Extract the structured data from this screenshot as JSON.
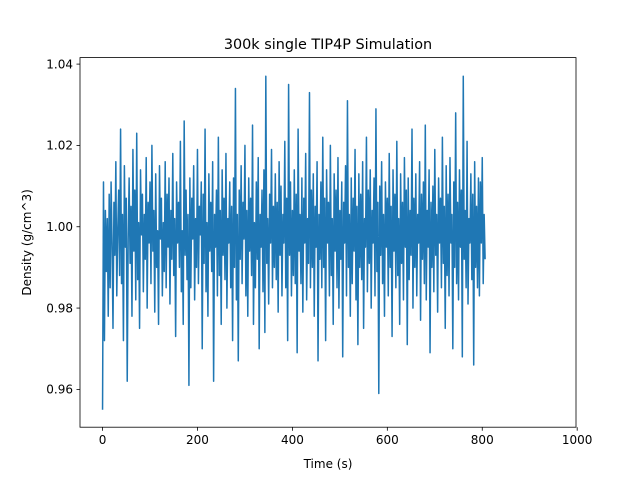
{
  "chart_data": {
    "type": "line",
    "title": "300k single TIP4P Simulation",
    "xlabel": "Time (s)",
    "ylabel": "Density (g/cm^3)",
    "xlim": [
      -47.5,
      997.5
    ],
    "ylim": [
      0.9507,
      1.0416
    ],
    "xticks": [
      0,
      200,
      400,
      600,
      800,
      1000
    ],
    "xtick_labels": [
      "0",
      "200",
      "400",
      "600",
      "800",
      "1000"
    ],
    "yticks": [
      0.96,
      0.98,
      1.0,
      1.02,
      1.04
    ],
    "ytick_labels": [
      "0.96",
      "0.98",
      "1.00",
      "1.02",
      "1.04"
    ],
    "grid": false,
    "series": [
      {
        "color": "#1f77b4",
        "x_start": 0,
        "x_step": 2,
        "values": [
          0.955,
          1.011,
          0.972,
          1.004,
          0.989,
          1.002,
          0.978,
          1.008,
          0.985,
          1.011,
          0.996,
          0.975,
          1.006,
          0.993,
          1.016,
          0.983,
          0.999,
          1.009,
          0.988,
          1.024,
          0.986,
          1.003,
          0.972,
          1.015,
          0.995,
          1.007,
          0.962,
          0.997,
          1.012,
          0.991,
          1.005,
          0.978,
          1.019,
          0.994,
          1.009,
          0.982,
          1.023,
          0.987,
          1.001,
          0.975,
          1.014,
          0.998,
          1.008,
          0.984,
          1.003,
          0.992,
          1.017,
          0.98,
          1.006,
          0.996,
          1.011,
          0.986,
          1.02,
          0.994,
          1.004,
          0.979,
          1.013,
          0.99,
          0.999,
          0.976,
          1.015,
          0.997,
          1.007,
          0.983,
          1.001,
          0.989,
          1.016,
          0.985,
          1.008,
          0.995,
          1.012,
          0.981,
          1.004,
          0.992,
          1.018,
          0.988,
          1.002,
          0.973,
          1.011,
          0.996,
          1.006,
          0.99,
          1.021,
          0.984,
          0.999,
          0.976,
          1.026,
          0.993,
          1.009,
          0.987,
          1.003,
          0.961,
          1.012,
          0.985,
          1.007,
          0.997,
          1.015,
          0.982,
          1.002,
          0.99,
          1.019,
          0.986,
          1.005,
          0.998,
          1.011,
          0.97,
          1.008,
          0.991,
          1.024,
          0.984,
          1.001,
          0.978,
          1.013,
          0.994,
          1.006,
          0.989,
          1.016,
          0.962,
          1.003,
          0.995,
          1.009,
          0.983,
          1.022,
          0.988,
          1.004,
          0.976,
          1.014,
          0.993,
          1.007,
          0.987,
          1.018,
          0.98,
          1.002,
          0.996,
          1.011,
          0.985,
          1.005,
          0.972,
          1.012,
          0.99,
          1.034,
          0.982,
          1.003,
          0.967,
          1.009,
          0.992,
          1.015,
          0.986,
          1.006,
          0.997,
          1.02,
          0.983,
          1.004,
          0.978,
          1.012,
          0.994,
          1.007,
          0.988,
          1.025,
          0.976,
          1.001,
          0.985,
          1.011,
          0.992,
          1.017,
          0.97,
          1.003,
          0.995,
          1.009,
          0.984,
          1.014,
          0.974,
          1.037,
          0.991,
          1.002,
          0.981,
          1.008,
          0.996,
          1.019,
          0.985,
          1.005,
          0.99,
          1.013,
          0.987,
          1.006,
          0.979,
          1.016,
          0.993,
          1.01,
          0.983,
          1.003,
          0.996,
          1.021,
          0.985,
          1.007,
          0.972,
          1.035,
          0.993,
          1.011,
          0.983,
          1.004,
          0.988,
          1.014,
          0.986,
          1.008,
          0.969,
          1.024,
          0.994,
          1.003,
          0.986,
          1.012,
          0.979,
          1.007,
          0.996,
          1.018,
          0.982,
          1.002,
          0.991,
          1.033,
          0.985,
          1.009,
          0.99,
          1.013,
          0.978,
          1.005,
          0.995,
          1.016,
          0.967,
          1.003,
          0.992,
          1.011,
          0.985,
          1.022,
          0.99,
          1.007,
          0.972,
          1.014,
          0.996,
          1.006,
          0.983,
          1.02,
          0.988,
          1.002,
          0.976,
          1.013,
          0.994,
          1.009,
          0.985,
          1.017,
          0.98,
          1.004,
          0.992,
          1.011,
          0.968,
          1.006,
          0.996,
          1.015,
          0.983,
          1.031,
          0.99,
          1.003,
          0.978,
          1.012,
          0.986,
          1.007,
          0.994,
          1.019,
          0.982,
          1.005,
          0.971,
          1.013,
          0.99,
          1.008,
          0.987,
          1.016,
          0.975,
          1.002,
          0.995,
          1.022,
          0.984,
          1.009,
          0.991,
          1.014,
          0.98,
          1.004,
          0.996,
          1.012,
          0.983,
          1.029,
          0.989,
          1.006,
          0.959,
          1.01,
          0.993,
          1.016,
          0.986,
          1.003,
          0.978,
          1.011,
          0.995,
          1.007,
          0.983,
          1.018,
          0.99,
          1.005,
          0.973,
          1.014,
          0.994,
          1.008,
          0.985,
          1.021,
          0.988,
          1.002,
          0.976,
          1.013,
          0.991,
          1.006,
          0.982,
          1.017,
          0.995,
          1.009,
          0.971,
          1.012,
          0.987,
          1.004,
          0.993,
          1.024,
          0.98,
          1.007,
          0.99,
          1.013,
          0.983,
          1.003,
          0.996,
          1.016,
          0.977,
          1.008,
          0.992,
          1.011,
          0.986,
          1.025,
          0.982,
          1.004,
          0.995,
          1.014,
          0.969,
          1.006,
          0.99,
          1.01,
          0.984,
          1.019,
          0.993,
          1.003,
          0.979,
          1.012,
          0.996,
          1.007,
          0.985,
          1.022,
          0.991,
          1.005,
          0.975,
          1.015,
          0.988,
          1.008,
          0.983,
          1.017,
          0.996,
          1.003,
          0.97,
          1.011,
          0.99,
          1.028,
          0.986,
          1.006,
          0.982,
          1.014,
          0.995,
          1.009,
          0.968,
          1.037,
          0.992,
          1.004,
          0.985,
          1.021,
          0.981,
          1.002,
          0.996,
          1.013,
          0.987,
          1.008,
          0.966,
          1.016,
          0.99,
          1.005,
          0.985,
          1.012,
          0.983,
          1.011,
          0.996,
          1.017,
          0.986,
          1.003,
          0.992
        ]
      }
    ]
  }
}
